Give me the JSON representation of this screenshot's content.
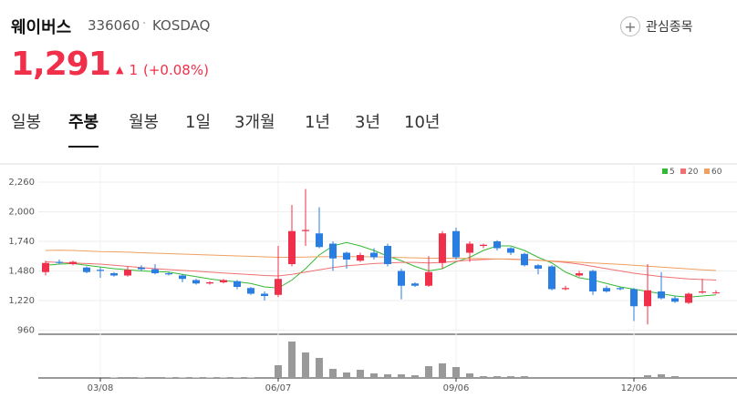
{
  "header": {
    "name": "웨이버스",
    "code": "336060",
    "market": "KOSDAQ",
    "watch_label": "관심종목",
    "price": "1,291",
    "change": "1",
    "change_pct": "(+0.08%)"
  },
  "tabs": {
    "items": [
      "일봉",
      "주봉",
      "월봉",
      "1일",
      "3개월",
      "1년",
      "3년",
      "10년"
    ],
    "selected": 1
  },
  "chart_data": {
    "type": "candlestick",
    "categories": [
      null,
      null,
      null,
      null,
      "03/08",
      null,
      null,
      null,
      null,
      null,
      null,
      null,
      null,
      null,
      null,
      null,
      null,
      "06/07",
      null,
      null,
      null,
      null,
      null,
      null,
      null,
      null,
      null,
      null,
      null,
      null,
      "09/06",
      null,
      null,
      null,
      null,
      null,
      null,
      null,
      null,
      null,
      null,
      null,
      null,
      "12/06",
      null,
      null,
      null,
      null,
      null,
      null
    ],
    "open": [
      1470,
      1560,
      1540,
      1510,
      1490,
      1460,
      1440,
      1510,
      1495,
      1460,
      1440,
      1400,
      1370,
      1380,
      1390,
      1330,
      1280,
      1270,
      1540,
      1830,
      1810,
      1720,
      1640,
      1570,
      1640,
      1700,
      1480,
      1370,
      1350,
      1550,
      1830,
      1640,
      1700,
      1740,
      1680,
      1630,
      1530,
      1520,
      1320,
      1440,
      1480,
      1330,
      1330,
      1320,
      1170,
      1300,
      1240,
      1200,
      1290,
      1290
    ],
    "high": [
      1570,
      1580,
      1570,
      1520,
      1510,
      1470,
      1520,
      1530,
      1540,
      1470,
      1450,
      1410,
      1390,
      1410,
      1400,
      1340,
      1300,
      1700,
      2060,
      2200,
      2040,
      1740,
      1650,
      1640,
      1680,
      1720,
      1500,
      1380,
      1610,
      1830,
      1860,
      1740,
      1720,
      1750,
      1690,
      1640,
      1540,
      1530,
      1350,
      1480,
      1490,
      1350,
      1340,
      1330,
      1540,
      1470,
      1260,
      1290,
      1410,
      1310
    ],
    "low": [
      1440,
      1540,
      1530,
      1460,
      1420,
      1430,
      1430,
      1480,
      1450,
      1440,
      1380,
      1360,
      1360,
      1370,
      1320,
      1270,
      1220,
      1250,
      1520,
      1700,
      1680,
      1480,
      1500,
      1560,
      1580,
      1520,
      1230,
      1340,
      1340,
      1500,
      1580,
      1560,
      1680,
      1660,
      1620,
      1520,
      1450,
      1310,
      1310,
      1430,
      1270,
      1290,
      1310,
      1040,
      1010,
      1230,
      1200,
      1190,
      1280,
      1280
    ],
    "close": [
      1550,
      1550,
      1560,
      1470,
      1480,
      1440,
      1490,
      1495,
      1460,
      1450,
      1410,
      1370,
      1380,
      1400,
      1340,
      1280,
      1260,
      1410,
      1830,
      1840,
      1690,
      1590,
      1580,
      1620,
      1600,
      1540,
      1350,
      1350,
      1470,
      1810,
      1600,
      1720,
      1710,
      1680,
      1640,
      1530,
      1500,
      1320,
      1330,
      1460,
      1300,
      1300,
      1320,
      1170,
      1310,
      1240,
      1210,
      1280,
      1300,
      1291
    ],
    "up_color": "#f0304a",
    "down_color": "#2a7de1",
    "ylim": [
      960,
      2260
    ],
    "yticks": [
      960,
      {
        "value": 1220,
        "label": "1,220"
      },
      {
        "value": 1480,
        "label": "1,480"
      },
      {
        "value": 1740,
        "label": "1,740"
      },
      {
        "value": 2000,
        "label": "2,000"
      },
      {
        "value": 2260,
        "label": "2,260"
      }
    ],
    "grid": true,
    "legend": "top-right",
    "series": [
      {
        "name": "5",
        "color": "#34b934",
        "values": [
          1530,
          1540,
          1545,
          1530,
          1515,
          1500,
          1490,
          1480,
          1475,
          1470,
          1450,
          1430,
          1410,
          1395,
          1385,
          1370,
          1340,
          1330,
          1400,
          1500,
          1620,
          1700,
          1730,
          1700,
          1660,
          1610,
          1570,
          1520,
          1480,
          1500,
          1560,
          1600,
          1660,
          1700,
          1700,
          1660,
          1600,
          1550,
          1470,
          1420,
          1400,
          1370,
          1340,
          1320,
          1300,
          1280,
          1260,
          1250,
          1260,
          1270
        ]
      },
      {
        "name": "20",
        "color": "#f07070",
        "values": [
          1560,
          1555,
          1550,
          1545,
          1540,
          1530,
          1520,
          1510,
          1500,
          1492,
          1485,
          1478,
          1470,
          1462,
          1455,
          1448,
          1440,
          1436,
          1450,
          1470,
          1490,
          1510,
          1525,
          1535,
          1545,
          1550,
          1555,
          1555,
          1550,
          1555,
          1565,
          1575,
          1580,
          1585,
          1585,
          1580,
          1575,
          1565,
          1555,
          1540,
          1520,
          1500,
          1480,
          1460,
          1445,
          1430,
          1420,
          1410,
          1405,
          1400
        ]
      },
      {
        "name": "60",
        "color": "#f0a060",
        "values": [
          1660,
          1662,
          1660,
          1655,
          1650,
          1648,
          1645,
          1640,
          1636,
          1632,
          1628,
          1624,
          1620,
          1616,
          1612,
          1608,
          1604,
          1600,
          1600,
          1602,
          1605,
          1606,
          1606,
          1605,
          1604,
          1602,
          1598,
          1595,
          1592,
          1592,
          1592,
          1590,
          1588,
          1585,
          1582,
          1578,
          1574,
          1568,
          1562,
          1556,
          1550,
          1544,
          1538,
          1530,
          1522,
          1514,
          1506,
          1498,
          1490,
          1484
        ]
      }
    ],
    "volume": {
      "color": "#999999",
      "ylim": [
        0,
        45
      ],
      "values": [
        1,
        1,
        1,
        1,
        1,
        0.5,
        1,
        0.5,
        1,
        0.5,
        0.5,
        0.5,
        0.5,
        0.5,
        0.5,
        0.5,
        1,
        14,
        40,
        28,
        22,
        10,
        6,
        9,
        5,
        4,
        4,
        3,
        13,
        16,
        12,
        5,
        2,
        2,
        2,
        2,
        1,
        1,
        1,
        1,
        1,
        1,
        1,
        1,
        3,
        4,
        2,
        1,
        1,
        1
      ]
    }
  }
}
